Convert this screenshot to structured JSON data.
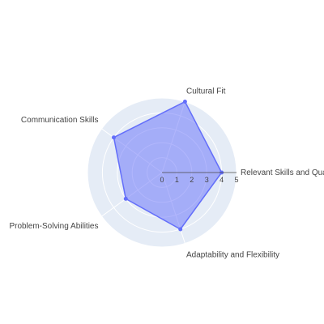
{
  "chart_data": {
    "type": "radar",
    "title": "",
    "categories": [
      "Relevant Skills and Qualifications",
      "Cultural Fit",
      "Communication Skills",
      "Problem-Solving Abilities",
      "Adaptability and Flexibility"
    ],
    "series": [
      {
        "values": [
          4,
          5,
          4,
          3,
          4
        ]
      }
    ],
    "radial_range": [
      0,
      5
    ],
    "radial_ticks": [
      "0",
      "1",
      "2",
      "3",
      "4",
      "5"
    ],
    "grid": true,
    "legend": "none",
    "colors": {
      "polar_background": "#e5ecf6",
      "grid": "#ffffff",
      "fill": "#636efa",
      "line": "#636efa"
    }
  }
}
